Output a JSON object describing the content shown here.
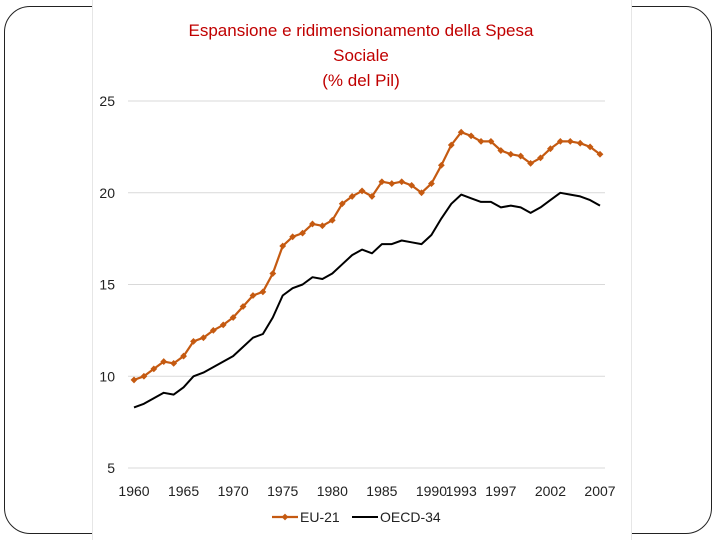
{
  "colors": {
    "title": "#c00000",
    "eu": "#c55a11",
    "oecd": "#000000",
    "grid": "#d9d9d9",
    "text": "#222222"
  },
  "chart_data": {
    "type": "line",
    "title_lines": [
      "Espansione  e ridimensionamento della Spesa",
      "Sociale",
      "(% del Pil)"
    ],
    "xlabel": "",
    "ylabel": "",
    "x": [
      1960,
      1961,
      1962,
      1963,
      1964,
      1965,
      1966,
      1967,
      1968,
      1969,
      1970,
      1971,
      1972,
      1973,
      1974,
      1975,
      1976,
      1977,
      1978,
      1979,
      1980,
      1981,
      1982,
      1983,
      1984,
      1985,
      1986,
      1987,
      1988,
      1989,
      1990,
      1991,
      1992,
      1993,
      1994,
      1995,
      1996,
      1997,
      1998,
      1999,
      2000,
      2001,
      2002,
      2003,
      2004,
      2005,
      2006,
      2007
    ],
    "x_tick_labels": [
      "1960",
      "1965",
      "1970",
      "1975",
      "1980",
      "1985",
      "1990",
      "1993",
      "1997",
      "2002",
      "2007"
    ],
    "x_tick_values": [
      1960,
      1965,
      1970,
      1975,
      1980,
      1985,
      1990,
      1993,
      1997,
      2002,
      2007
    ],
    "y_ticks": [
      5,
      10,
      15,
      20,
      25
    ],
    "ylim": [
      5,
      25
    ],
    "grid": "horizontal",
    "legend_position": "bottom",
    "series": [
      {
        "name": "EU-21",
        "marker": "diamond",
        "values": [
          9.8,
          10.0,
          10.4,
          10.8,
          10.7,
          11.1,
          11.9,
          12.1,
          12.5,
          12.8,
          13.2,
          13.8,
          14.4,
          14.6,
          15.6,
          17.1,
          17.6,
          17.8,
          18.3,
          18.2,
          18.5,
          19.4,
          19.8,
          20.1,
          19.8,
          20.6,
          20.5,
          20.6,
          20.4,
          20.0,
          20.5,
          21.5,
          22.6,
          23.3,
          23.1,
          22.8,
          22.8,
          22.3,
          22.1,
          22.0,
          21.6,
          21.9,
          22.4,
          22.8,
          22.8,
          22.7,
          22.5,
          22.1
        ]
      },
      {
        "name": "OECD-34",
        "marker": "none",
        "values": [
          8.3,
          8.5,
          8.8,
          9.1,
          9.0,
          9.4,
          10.0,
          10.2,
          10.5,
          10.8,
          11.1,
          11.6,
          12.1,
          12.3,
          13.2,
          14.4,
          14.8,
          15.0,
          15.4,
          15.3,
          15.6,
          16.1,
          16.6,
          16.9,
          16.7,
          17.2,
          17.2,
          17.4,
          17.3,
          17.2,
          17.7,
          18.6,
          19.4,
          19.9,
          19.7,
          19.5,
          19.5,
          19.2,
          19.3,
          19.2,
          18.9,
          19.2,
          19.6,
          20.0,
          19.9,
          19.8,
          19.6,
          19.3
        ]
      }
    ]
  }
}
